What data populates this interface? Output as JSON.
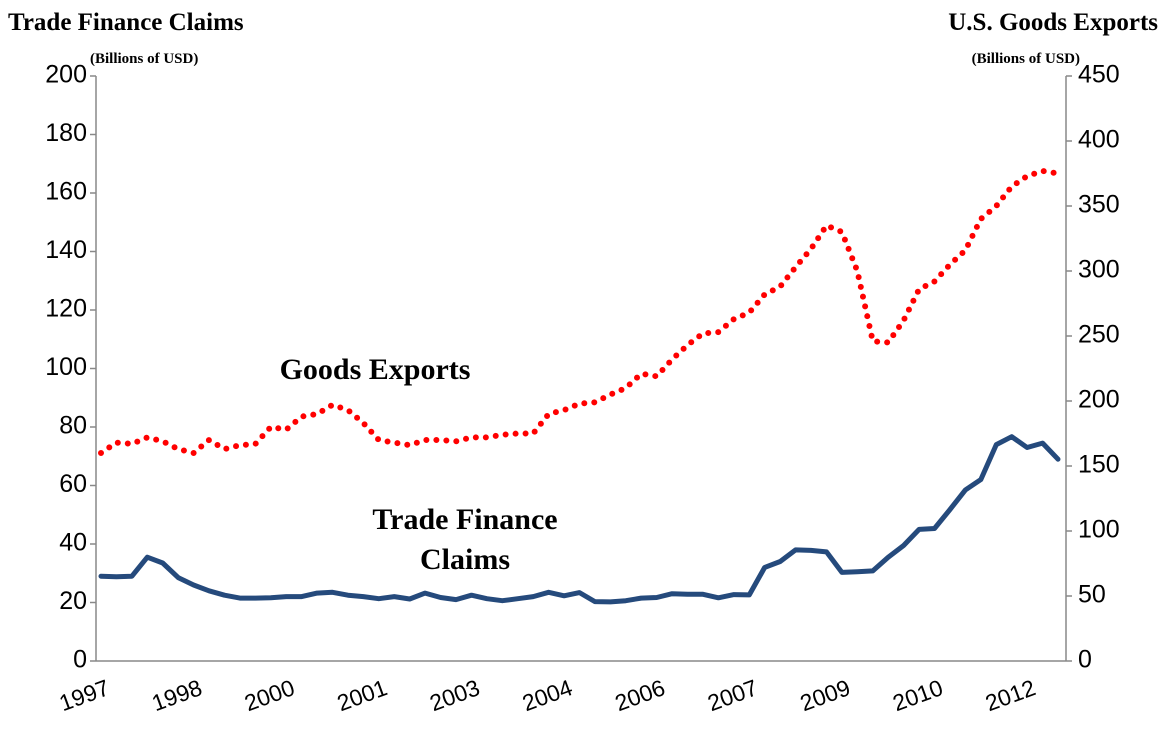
{
  "chart_data": {
    "type": "line",
    "title": "Trade Finance Claims",
    "subtitle": "(Billions of USD)",
    "y2_title": "U.S. Goods Exports",
    "y2_subtitle": "(Billions of USD)",
    "categories": [
      "1997",
      null,
      null,
      null,
      null,
      null,
      "1998",
      null,
      null,
      null,
      null,
      null,
      "2000",
      null,
      null,
      null,
      null,
      null,
      "2001",
      null,
      null,
      null,
      null,
      null,
      "2003",
      null,
      null,
      null,
      null,
      null,
      "2004",
      null,
      null,
      null,
      null,
      null,
      "2006",
      null,
      null,
      null,
      null,
      null,
      "2007",
      null,
      null,
      null,
      null,
      null,
      "2009",
      null,
      null,
      null,
      null,
      null,
      "2010",
      null,
      null,
      null,
      null,
      null,
      "2012",
      null,
      null
    ],
    "series": [
      {
        "name": "Trade Finance Claims",
        "color": "#254a7c",
        "style": "solid",
        "values": [
          29,
          28.8,
          29,
          35.5,
          33.5,
          28.5,
          26,
          24,
          22.5,
          21.5,
          21.5,
          21.6,
          22,
          22,
          23.2,
          23.5,
          22.5,
          22,
          21.3,
          22,
          21.2,
          23.2,
          21.7,
          21,
          22.5,
          21.3,
          20.6,
          21.3,
          22,
          23.5,
          22.3,
          23.4,
          20.3,
          20.2,
          20.6,
          21.5,
          21.7,
          23,
          22.8,
          22.8,
          21.6,
          22.7,
          22.6,
          32,
          34,
          38,
          37.8,
          37.3,
          30.3,
          30.5,
          30.8,
          35.5,
          39.5,
          45,
          45.3,
          51.8,
          58.5,
          62,
          74,
          76.7,
          73,
          74.5,
          69
        ]
      },
      {
        "name": "Goods Exports",
        "color": "#ff0000",
        "style": "dotted",
        "axis": "y2",
        "values": [
          160,
          168,
          167,
          172,
          169,
          163,
          160,
          170,
          163,
          166,
          167,
          180,
          178,
          188,
          190,
          197,
          193,
          183,
          170,
          168,
          166,
          170,
          170,
          169,
          172,
          172,
          174,
          175,
          175,
          190,
          193,
          198,
          199,
          205,
          210,
          221,
          219,
          232,
          243,
          252,
          253,
          263,
          268,
          282,
          288,
          303,
          317,
          335,
          330,
          300,
          246,
          245,
          262,
          286,
          292,
          305,
          316,
          340,
          350,
          365,
          373,
          377,
          375
        ]
      }
    ],
    "ylim": [
      0,
      200
    ],
    "yticks": [
      0,
      20,
      40,
      60,
      80,
      100,
      120,
      140,
      160,
      180,
      200
    ],
    "y2lim": [
      0,
      450
    ],
    "y2ticks": [
      0,
      50,
      100,
      150,
      200,
      250,
      300,
      350,
      400,
      450
    ],
    "grid": false
  }
}
